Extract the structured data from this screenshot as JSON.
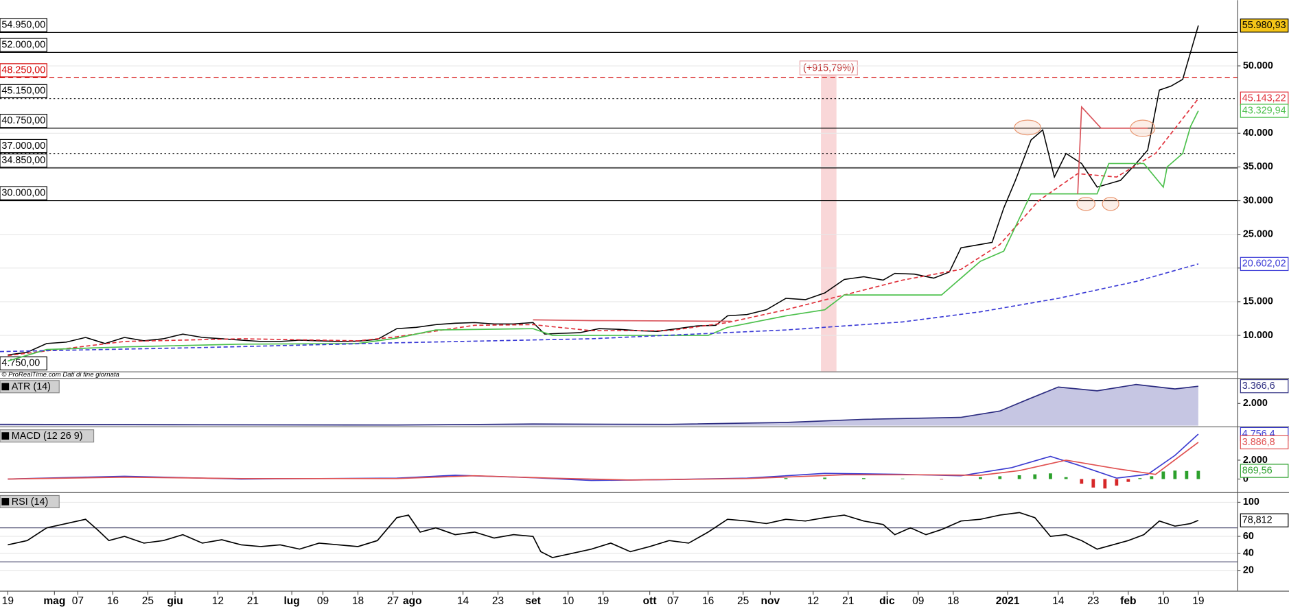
{
  "chart_data": [
    {
      "type": "line",
      "credit": "© ProRealTime.com  Dati di fine giornata",
      "ylim": [
        4650,
        59750
      ],
      "yticks": [
        {
          "value": 10000,
          "label": "10.000"
        },
        {
          "value": 15000,
          "label": "15.000"
        },
        {
          "value": 20000,
          "label": "20.000"
        },
        {
          "value": 25000,
          "label": "25.000"
        },
        {
          "value": 30000,
          "label": "30.000"
        },
        {
          "value": 35000,
          "label": "35.000"
        },
        {
          "value": 40000,
          "label": "40.000"
        },
        {
          "value": 50000,
          "label": "50.000"
        }
      ],
      "grid": true,
      "levels": [
        {
          "value": 54950,
          "label": "54.950,00",
          "style": "solid",
          "color": "#000000"
        },
        {
          "value": 52000,
          "label": "52.000,00",
          "style": "solid",
          "color": "#000000"
        },
        {
          "value": 48250,
          "label": "48.250,00",
          "style": "dashed",
          "color": "#d40000"
        },
        {
          "value": 45150,
          "label": "45.150,00",
          "style": "dotted",
          "color": "#000000"
        },
        {
          "value": 40750,
          "label": "40.750,00",
          "style": "solid",
          "color": "#000000"
        },
        {
          "value": 37000,
          "label": "37.000,00",
          "style": "dotted",
          "color": "#000000"
        },
        {
          "value": 34850,
          "label": "34.850,00",
          "style": "solid",
          "color": "#000000"
        },
        {
          "value": 30000,
          "label": "30.000,00",
          "style": "solid",
          "color": "#000000"
        },
        {
          "value": 4750,
          "label": "4.750,00",
          "style": "none",
          "color": "#000000"
        }
      ],
      "annotation": {
        "text": "(+915,79%)",
        "x": [
          209,
          213
        ],
        "color": "#f6c6c8"
      },
      "series": [
        {
          "color": "#000000",
          "dash": false,
          "last_label": "55.980,93",
          "label_bg": "#f5c518",
          "x": [
            0,
            5,
            10,
            15,
            20,
            25,
            30,
            35,
            40,
            45,
            50,
            55,
            60,
            65,
            70,
            75,
            80,
            85,
            90,
            95,
            100,
            105,
            110,
            115,
            120,
            125,
            130,
            135,
            138,
            142,
            147,
            152,
            157,
            162,
            167,
            172,
            177,
            182,
            185,
            190,
            195,
            200,
            205,
            210,
            215,
            220,
            225,
            228,
            233,
            238,
            242,
            245,
            250,
            253,
            256,
            259,
            263,
            266,
            269,
            272,
            276,
            280,
            283,
            286,
            290,
            293,
            296,
            299,
            302,
            304,
            306
          ],
          "values": [
            7100,
            7500,
            8800,
            9000,
            9700,
            8800,
            9700,
            9200,
            9500,
            10200,
            9700,
            9500,
            9300,
            9100,
            9100,
            9300,
            9200,
            9100,
            9150,
            9400,
            11000,
            11200,
            11600,
            11800,
            11900,
            11700,
            11700,
            11900,
            10200,
            10300,
            10400,
            11000,
            10900,
            10700,
            10600,
            11000,
            11400,
            11500,
            12900,
            13100,
            13800,
            15500,
            15300,
            16300,
            18300,
            18700,
            18200,
            19200,
            19100,
            18500,
            19400,
            23000,
            23500,
            23800,
            28900,
            33000,
            39000,
            40500,
            33500,
            37000,
            35500,
            32000,
            32500,
            33000,
            35500,
            37500,
            46400,
            47000,
            48000,
            52000,
            55980.93
          ]
        },
        {
          "color": "#e0303a",
          "dash": true,
          "last_label": "45.143,22",
          "label_bg": "#ffffff",
          "x": [
            0,
            30,
            60,
            90,
            100,
            120,
            135,
            150,
            170,
            185,
            200,
            215,
            230,
            245,
            255,
            265,
            275,
            285,
            295,
            306
          ],
          "values": [
            7000,
            9100,
            9500,
            9200,
            9800,
            11500,
            11600,
            10700,
            10700,
            11900,
            13800,
            16000,
            18200,
            19800,
            23500,
            30000,
            34000,
            33500,
            37000,
            45143.22
          ]
        },
        {
          "color": "#4cc04c",
          "dash": false,
          "last_label": "43.329,94",
          "label_bg": "#ffffff",
          "x": [
            0,
            10,
            30,
            60,
            90,
            100,
            110,
            135,
            140,
            180,
            185,
            200,
            210,
            215,
            240,
            245,
            250,
            256,
            263,
            280,
            283,
            292,
            297,
            298,
            302,
            304,
            306
          ],
          "values": [
            6200,
            7900,
            8300,
            8700,
            8800,
            9600,
            10800,
            11000,
            10000,
            10000,
            11200,
            12900,
            13800,
            16000,
            16000,
            18500,
            21000,
            22500,
            31000,
            31000,
            35500,
            35500,
            32000,
            35000,
            37000,
            41000,
            43329.94
          ]
        },
        {
          "color": "#3b3bd6",
          "dash": true,
          "last_label": "20.602,02",
          "label_bg": "#ffffff",
          "x": [
            -2,
            50,
            100,
            150,
            200,
            230,
            250,
            270,
            290,
            306
          ],
          "values": [
            7600,
            8200,
            8900,
            9500,
            10800,
            12000,
            13500,
            15500,
            18000,
            20602.02
          ]
        },
        {
          "color": "#d9535a",
          "dash": false,
          "x": [
            135,
            150,
            170,
            186,
            null,
            275,
            276,
            281,
            293
          ],
          "values": [
            12300,
            12200,
            12150,
            12100,
            null,
            31000,
            43900,
            40750,
            40750
          ]
        }
      ]
    },
    {
      "type": "line",
      "title": "ATR (14)",
      "ylim": [
        247,
        3883
      ],
      "yticks": [
        {
          "value": 2000,
          "label": "2.000"
        }
      ],
      "grid": false,
      "series": [
        {
          "kind": "area",
          "color": "#2c2c80",
          "fill": "#b8b8dc",
          "last_label": "3.366,6",
          "label_bg": "#ffffff",
          "x": [
            -2,
            0,
            50,
            100,
            135,
            170,
            200,
            220,
            245,
            255,
            262,
            270,
            280,
            290,
            300,
            306
          ],
          "values": [
            350,
            350,
            320,
            300,
            380,
            350,
            500,
            750,
            900,
            1400,
            2300,
            3300,
            3000,
            3500,
            3150,
            3366.6
          ]
        }
      ]
    },
    {
      "type": "line",
      "title": "MACD (12 26 9)",
      "ylim": [
        -1304,
        5304
      ],
      "yticks": [
        0,
        {
          "value": 2000,
          "label": "2.000"
        }
      ],
      "grid": false,
      "series": [
        {
          "kind": "bar",
          "color": "#2ca02c",
          "neg_color": "#d62728",
          "last_label": "869,56",
          "label_bg": "#ffffff",
          "x": [
            200,
            210,
            220,
            230,
            240,
            250,
            255,
            260,
            264,
            268,
            272,
            276,
            279,
            282,
            285,
            288,
            291,
            294,
            297,
            300,
            303,
            306
          ],
          "values": [
            100,
            150,
            100,
            50,
            -50,
            200,
            300,
            400,
            500,
            600,
            200,
            -500,
            -900,
            -1000,
            -700,
            -300,
            100,
            300,
            800,
            900,
            850,
            869.56
          ]
        },
        {
          "color": "#3a3ad0",
          "last_label": "4.756,4",
          "label_bg": "#ffffff",
          "x": [
            0,
            20,
            30,
            60,
            100,
            115,
            135,
            150,
            170,
            190,
            210,
            230,
            245,
            258,
            268,
            275,
            285,
            293,
            300,
            306
          ],
          "values": [
            0,
            200,
            300,
            0,
            100,
            400,
            150,
            -150,
            -50,
            100,
            600,
            500,
            350,
            1200,
            2400,
            1500,
            100,
            500,
            2500,
            4756.4
          ]
        },
        {
          "color": "#e05050",
          "last_label": "3.886,8",
          "label_bg": "#ffffff",
          "x": [
            0,
            30,
            60,
            100,
            120,
            140,
            160,
            190,
            215,
            235,
            250,
            260,
            272,
            285,
            295,
            306
          ],
          "values": [
            0,
            200,
            50,
            50,
            350,
            100,
            -100,
            50,
            450,
            450,
            400,
            900,
            2000,
            1100,
            500,
            3886.8
          ]
        }
      ]
    },
    {
      "type": "line",
      "title": "RSI (14)",
      "ylim": [
        -3,
        109
      ],
      "yticks": [
        20,
        40,
        60,
        100
      ],
      "grid": true,
      "levels": [
        {
          "value": 70,
          "style": "solid",
          "color": "#555577"
        },
        {
          "value": 30,
          "style": "solid",
          "color": "#555577"
        }
      ],
      "xlim": [
        -2,
        316
      ],
      "xticks": [
        {
          "value": 0,
          "label": "19"
        },
        {
          "value": 12,
          "label": "mag"
        },
        {
          "value": 18,
          "label": "07"
        },
        {
          "value": 27,
          "label": "16"
        },
        {
          "value": 36,
          "label": "25"
        },
        {
          "value": 43,
          "label": "giu"
        },
        {
          "value": 54,
          "label": "12"
        },
        {
          "value": 63,
          "label": "21"
        },
        {
          "value": 73,
          "label": "lug"
        },
        {
          "value": 81,
          "label": "09"
        },
        {
          "value": 90,
          "label": "18"
        },
        {
          "value": 99,
          "label": "27"
        },
        {
          "value": 104,
          "label": "ago"
        },
        {
          "value": 117,
          "label": "14"
        },
        {
          "value": 126,
          "label": "23"
        },
        {
          "value": 135,
          "label": "set"
        },
        {
          "value": 144,
          "label": "10"
        },
        {
          "value": 153,
          "label": "19"
        },
        {
          "value": 165,
          "label": "ott"
        },
        {
          "value": 171,
          "label": "07"
        },
        {
          "value": 180,
          "label": "16"
        },
        {
          "value": 189,
          "label": "25"
        },
        {
          "value": 196,
          "label": "nov"
        },
        {
          "value": 207,
          "label": "12"
        },
        {
          "value": 216,
          "label": "21"
        },
        {
          "value": 226,
          "label": "dic"
        },
        {
          "value": 234,
          "label": "09"
        },
        {
          "value": 243,
          "label": "18"
        },
        {
          "value": 257,
          "label": "2021"
        },
        {
          "value": 270,
          "label": "14"
        },
        {
          "value": 279,
          "label": "23"
        },
        {
          "value": 288,
          "label": "feb"
        },
        {
          "value": 297,
          "label": "10"
        },
        {
          "value": 306,
          "label": "19"
        }
      ],
      "series": [
        {
          "color": "#000000",
          "last_label": "78,812",
          "label_bg": "#ffffff",
          "x": [
            0,
            5,
            10,
            15,
            20,
            23,
            26,
            30,
            35,
            40,
            45,
            50,
            55,
            60,
            65,
            70,
            75,
            80,
            85,
            90,
            95,
            100,
            103,
            106,
            110,
            115,
            120,
            125,
            130,
            135,
            137,
            140,
            145,
            150,
            155,
            160,
            165,
            170,
            175,
            180,
            185,
            190,
            195,
            200,
            205,
            210,
            215,
            220,
            225,
            228,
            232,
            236,
            240,
            245,
            250,
            255,
            260,
            264,
            268,
            272,
            276,
            280,
            284,
            288,
            292,
            296,
            300,
            304,
            306
          ],
          "values": [
            50,
            55,
            70,
            75,
            80,
            68,
            55,
            60,
            52,
            55,
            62,
            52,
            56,
            50,
            48,
            50,
            45,
            52,
            50,
            48,
            55,
            82,
            85,
            65,
            70,
            62,
            65,
            58,
            62,
            60,
            42,
            35,
            40,
            45,
            52,
            42,
            48,
            55,
            52,
            65,
            80,
            78,
            75,
            80,
            78,
            82,
            85,
            78,
            74,
            62,
            70,
            62,
            68,
            78,
            80,
            85,
            88,
            82,
            60,
            62,
            55,
            45,
            50,
            55,
            62,
            78,
            72,
            75,
            78.812
          ]
        }
      ]
    }
  ]
}
